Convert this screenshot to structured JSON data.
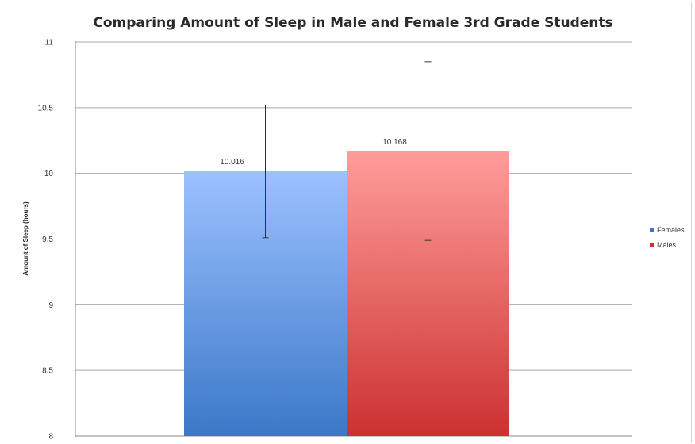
{
  "chart_data": {
    "type": "bar",
    "title": "Comparing Amount of Sleep in Male and Female 3rd Grade Students",
    "xlabel": "",
    "ylabel": "Amount of Sleep (hours)",
    "ylim": [
      8,
      11
    ],
    "y_ticks": [
      "8",
      "8.5",
      "9",
      "9.5",
      "10",
      "10.5",
      "11"
    ],
    "grid": "horizontal",
    "legend_position": "right",
    "series": [
      {
        "name": "Females",
        "value": 10.016,
        "label": "10.016",
        "error_low": 9.51,
        "error_high": 10.52,
        "color_top": "#9cc1ff",
        "color_bottom": "#3b78c8"
      },
      {
        "name": "Males",
        "value": 10.168,
        "label": "10.168",
        "error_low": 9.49,
        "error_high": 10.85,
        "color_top": "#ff9d9a",
        "color_bottom": "#cc3131"
      }
    ]
  }
}
